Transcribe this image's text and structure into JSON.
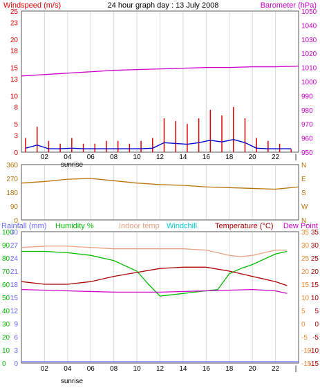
{
  "header": {
    "title": "24 hour graph day : 13 July 2008",
    "left_label": "Windspeed (m/s)",
    "right_label": "Barometer (hPa)"
  },
  "colors": {
    "windspeed": "#dd0000",
    "windavg": "#0000cc",
    "barometer": "#cc00cc",
    "direction": "#b8730a",
    "rainfall": "#6666ff",
    "humidity": "#00bb00",
    "indoor": "#e8a080",
    "windchill": "#00cccc",
    "temperature": "#aa0000",
    "dewpoint": "#cc00cc",
    "temp_axis": "#ee8a30",
    "grid": "#d8d8d8"
  },
  "x_axis": {
    "ticks": [
      "02",
      "04",
      "06",
      "08",
      "10",
      "12",
      "14",
      "16",
      "18",
      "20",
      "22"
    ],
    "sunrise_label": "sunrise",
    "sunrise_label_2": "sunrise"
  },
  "bottom_legend": {
    "rainfall": "Rainfall (mm)",
    "humidity": "Humidity %",
    "indoor": "Indoor temp",
    "windchill": "Windchill",
    "temperature": "Temperature (°C)",
    "dewpoint": "Dew Point"
  },
  "chart_data": [
    {
      "type": "line",
      "title": "24 hour graph day : 13 July 2008",
      "ylabel": "Windspeed (m/s)",
      "y2label": "Barometer (hPa)",
      "ylim": [
        0,
        25
      ],
      "y_ticks": [
        0,
        3,
        5,
        8,
        10,
        13,
        15,
        18,
        20,
        23,
        25
      ],
      "y2lim": [
        950,
        1050
      ],
      "y2_ticks": [
        950,
        960,
        970,
        980,
        990,
        1000,
        1010,
        1020,
        1030,
        1040,
        1050
      ],
      "xlim": [
        0,
        24
      ],
      "series": [
        {
          "name": "Windspeed (m/s)",
          "x": [
            0,
            1,
            2,
            3,
            4,
            5,
            6,
            7,
            8,
            9,
            10,
            11,
            12,
            13,
            14,
            15,
            16,
            17,
            18,
            19,
            20,
            21,
            22,
            23
          ],
          "values": [
            2.5,
            4.5,
            2,
            1.5,
            2.5,
            1.5,
            1.5,
            2,
            2,
            1.5,
            2,
            2.5,
            6,
            5.5,
            5,
            6,
            7.5,
            6.5,
            8,
            6,
            2.5,
            2,
            1.5,
            0.5
          ]
        },
        {
          "name": "Barometer (hPa)",
          "x": [
            0,
            2,
            4,
            6,
            8,
            10,
            12,
            14,
            16,
            18,
            20,
            22,
            24
          ],
          "values": [
            1004,
            1005,
            1006,
            1007,
            1008,
            1008.5,
            1009,
            1009.5,
            1010,
            1010,
            1010.5,
            1010.5,
            1011
          ]
        }
      ]
    },
    {
      "type": "line",
      "ylim": [
        0,
        360
      ],
      "y_ticks": [
        0,
        90,
        180,
        270,
        360
      ],
      "y2_ticks": [
        "N",
        "W",
        "S",
        "E",
        "N"
      ],
      "xlim": [
        0,
        24
      ],
      "series": [
        {
          "x": [
            0,
            2,
            4,
            6,
            8,
            10,
            12,
            14,
            16,
            18,
            20,
            22,
            24
          ],
          "values": [
            240,
            250,
            265,
            270,
            255,
            240,
            230,
            225,
            215,
            210,
            205,
            200,
            215
          ]
        }
      ]
    },
    {
      "type": "line",
      "xlim": [
        0,
        24
      ],
      "ylabel": "Humidity %",
      "y_ticks": [
        0,
        10,
        20,
        30,
        40,
        50,
        60,
        70,
        80,
        90,
        100
      ],
      "rain_ticks": [
        0,
        3,
        6,
        9,
        12,
        15,
        18,
        21,
        24,
        27,
        30
      ],
      "y2label": "Temperature (°C)",
      "y2lim": [
        -15,
        35
      ],
      "y2_ticks": [
        -15,
        -10,
        -5,
        0,
        5,
        10,
        15,
        20,
        25,
        30,
        35
      ],
      "series": [
        {
          "name": "Humidity %",
          "x": [
            0,
            2,
            4,
            6,
            8,
            10,
            11,
            12,
            13,
            14,
            15,
            16,
            17,
            18,
            19,
            20,
            21,
            22,
            23
          ],
          "values": [
            85,
            85,
            84,
            82,
            78,
            70,
            60,
            51,
            52,
            53,
            54,
            55,
            56,
            68,
            72,
            75,
            79,
            83,
            85
          ]
        },
        {
          "name": "Temperature (°C)",
          "x": [
            0,
            2,
            4,
            6,
            8,
            10,
            12,
            14,
            16,
            18,
            20,
            22,
            23
          ],
          "values": [
            16,
            15,
            15,
            16,
            18,
            19.5,
            21,
            21.5,
            21.5,
            20,
            18,
            16,
            14.5
          ]
        },
        {
          "name": "Indoor temp",
          "x": [
            0,
            2,
            4,
            6,
            8,
            10,
            12,
            14,
            16,
            18,
            19,
            20,
            21,
            22,
            23
          ],
          "values": [
            29,
            29.5,
            29.5,
            29,
            28.5,
            28.5,
            28.5,
            28.5,
            28,
            26,
            25.5,
            26,
            27,
            28,
            28
          ]
        },
        {
          "name": "Dew Point",
          "x": [
            0,
            4,
            8,
            12,
            16,
            20,
            22,
            23
          ],
          "values": [
            13,
            12.5,
            12,
            12,
            12.5,
            13,
            12.5,
            11.5
          ]
        },
        {
          "name": "Rainfall (mm)",
          "x": [
            0,
            24
          ],
          "values": [
            0,
            0
          ]
        }
      ]
    }
  ]
}
